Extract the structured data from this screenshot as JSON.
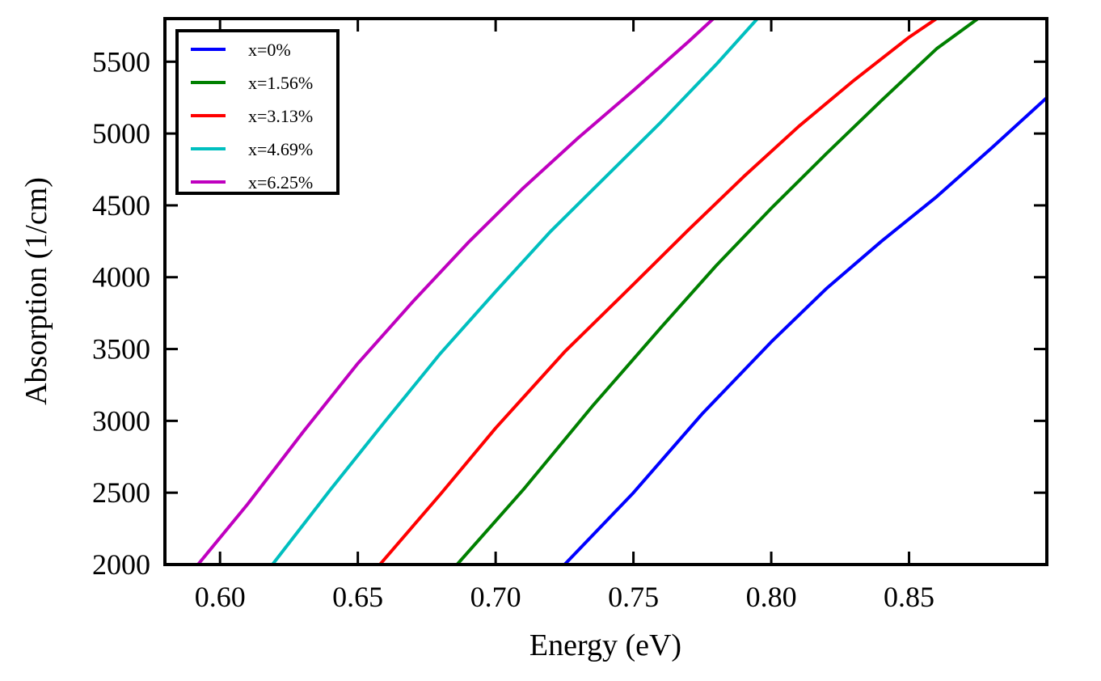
{
  "chart_data": {
    "type": "line",
    "title": "",
    "xlabel": "Energy (eV)",
    "ylabel": "Absorption (1/cm)",
    "xlim": [
      0.58,
      0.9
    ],
    "ylim": [
      2000,
      5800
    ],
    "xticks": [
      0.6,
      0.65,
      0.7,
      0.75,
      0.8,
      0.85
    ],
    "xtick_labels": [
      "0.60",
      "0.65",
      "0.70",
      "0.75",
      "0.80",
      "0.85"
    ],
    "yticks": [
      2000,
      2500,
      3000,
      3500,
      4000,
      4500,
      5000,
      5500
    ],
    "ytick_labels": [
      "2000",
      "2500",
      "3000",
      "3500",
      "4000",
      "4500",
      "5000",
      "5500"
    ],
    "legend_position": "top-left",
    "series": [
      {
        "name": "x=0%",
        "color": "#0000ff",
        "x": [
          0.725,
          0.75,
          0.775,
          0.8,
          0.82,
          0.84,
          0.86,
          0.88,
          0.9
        ],
        "y": [
          2000,
          2500,
          3050,
          3550,
          3920,
          4250,
          4560,
          4900,
          5250
        ]
      },
      {
        "name": "x=1.56%",
        "color": "#008000",
        "x": [
          0.686,
          0.71,
          0.735,
          0.76,
          0.78,
          0.8,
          0.82,
          0.84,
          0.86,
          0.875
        ],
        "y": [
          2000,
          2520,
          3100,
          3650,
          4080,
          4480,
          4860,
          5230,
          5590,
          5800
        ]
      },
      {
        "name": "x=3.13%",
        "color": "#ff0000",
        "x": [
          0.658,
          0.68,
          0.7,
          0.725,
          0.75,
          0.77,
          0.79,
          0.81,
          0.83,
          0.85,
          0.86
        ],
        "y": [
          2000,
          2490,
          2950,
          3480,
          3950,
          4330,
          4700,
          5050,
          5370,
          5670,
          5800
        ]
      },
      {
        "name": "x=4.69%",
        "color": "#00bfbf",
        "x": [
          0.619,
          0.64,
          0.66,
          0.68,
          0.7,
          0.72,
          0.74,
          0.76,
          0.78,
          0.795
        ],
        "y": [
          2000,
          2520,
          3000,
          3470,
          3900,
          4320,
          4700,
          5080,
          5480,
          5800
        ]
      },
      {
        "name": "x=6.25%",
        "color": "#bf00bf",
        "x": [
          0.592,
          0.61,
          0.63,
          0.65,
          0.67,
          0.69,
          0.71,
          0.73,
          0.75,
          0.77,
          0.779
        ],
        "y": [
          2000,
          2420,
          2920,
          3400,
          3830,
          4240,
          4620,
          4970,
          5300,
          5640,
          5800
        ]
      }
    ]
  }
}
